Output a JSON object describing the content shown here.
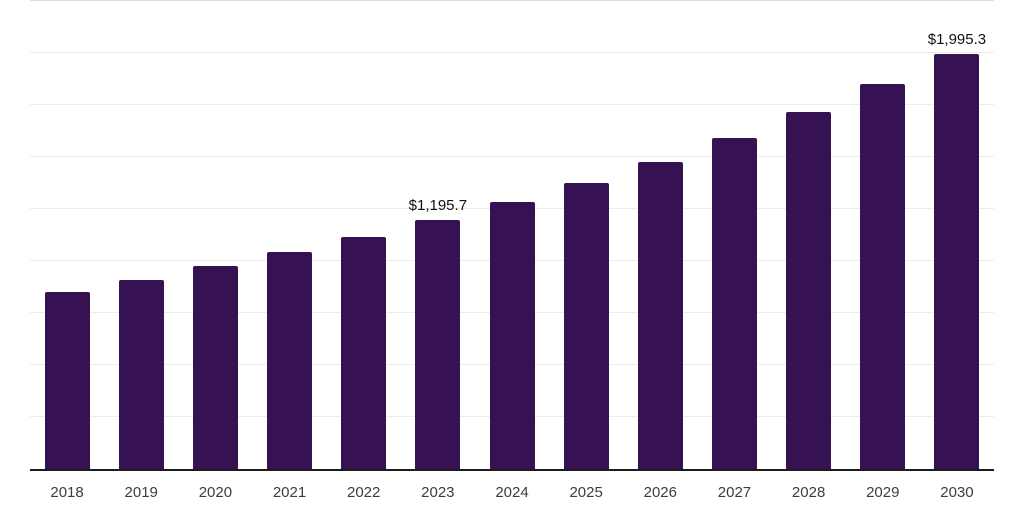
{
  "chart_data": {
    "type": "bar",
    "categories": [
      "2018",
      "2019",
      "2020",
      "2021",
      "2022",
      "2023",
      "2024",
      "2025",
      "2026",
      "2027",
      "2028",
      "2029",
      "2030"
    ],
    "values": [
      849,
      907,
      974,
      1041,
      1115,
      1195.7,
      1282,
      1376,
      1478,
      1591,
      1715,
      1850,
      1995.3
    ],
    "bar_labels": [
      "",
      "",
      "",
      "",
      "",
      "$1,195.7",
      "",
      "",
      "",
      "",
      "",
      "",
      "$1,995.3"
    ],
    "title": "",
    "xlabel": "",
    "ylabel": "",
    "ylim": [
      0,
      2250
    ],
    "gridline_step": 250,
    "grid": true,
    "legend": "none",
    "colors": {
      "bar": "#371253",
      "gridline": "#ececec",
      "top_gridline": "#dcdcdc",
      "axis_line": "#1c1c1c",
      "tick_label": "#3d3d3d",
      "value_label": "#111111",
      "background": "#ffffff"
    }
  }
}
